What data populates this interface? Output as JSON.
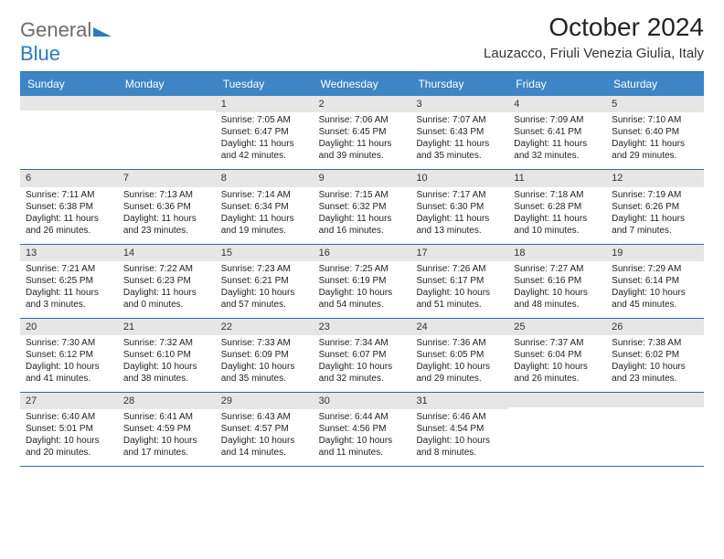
{
  "logo": {
    "word1": "General",
    "word2": "Blue"
  },
  "title": "October 2024",
  "subtitle": "Lauzacco, Friuli Venezia Giulia, Italy",
  "colors": {
    "header_bg": "#3d85c6",
    "header_text": "#ffffff",
    "daynum_bg": "#e6e6e6",
    "border": "#2c6aa0",
    "logo_gray": "#6b6b6b",
    "logo_blue": "#2c7bbf"
  },
  "dayNames": [
    "Sunday",
    "Monday",
    "Tuesday",
    "Wednesday",
    "Thursday",
    "Friday",
    "Saturday"
  ],
  "weeks": [
    [
      {
        "n": "",
        "sr": "",
        "ss": "",
        "dl": ""
      },
      {
        "n": "",
        "sr": "",
        "ss": "",
        "dl": ""
      },
      {
        "n": "1",
        "sr": "Sunrise: 7:05 AM",
        "ss": "Sunset: 6:47 PM",
        "dl": "Daylight: 11 hours and 42 minutes."
      },
      {
        "n": "2",
        "sr": "Sunrise: 7:06 AM",
        "ss": "Sunset: 6:45 PM",
        "dl": "Daylight: 11 hours and 39 minutes."
      },
      {
        "n": "3",
        "sr": "Sunrise: 7:07 AM",
        "ss": "Sunset: 6:43 PM",
        "dl": "Daylight: 11 hours and 35 minutes."
      },
      {
        "n": "4",
        "sr": "Sunrise: 7:09 AM",
        "ss": "Sunset: 6:41 PM",
        "dl": "Daylight: 11 hours and 32 minutes."
      },
      {
        "n": "5",
        "sr": "Sunrise: 7:10 AM",
        "ss": "Sunset: 6:40 PM",
        "dl": "Daylight: 11 hours and 29 minutes."
      }
    ],
    [
      {
        "n": "6",
        "sr": "Sunrise: 7:11 AM",
        "ss": "Sunset: 6:38 PM",
        "dl": "Daylight: 11 hours and 26 minutes."
      },
      {
        "n": "7",
        "sr": "Sunrise: 7:13 AM",
        "ss": "Sunset: 6:36 PM",
        "dl": "Daylight: 11 hours and 23 minutes."
      },
      {
        "n": "8",
        "sr": "Sunrise: 7:14 AM",
        "ss": "Sunset: 6:34 PM",
        "dl": "Daylight: 11 hours and 19 minutes."
      },
      {
        "n": "9",
        "sr": "Sunrise: 7:15 AM",
        "ss": "Sunset: 6:32 PM",
        "dl": "Daylight: 11 hours and 16 minutes."
      },
      {
        "n": "10",
        "sr": "Sunrise: 7:17 AM",
        "ss": "Sunset: 6:30 PM",
        "dl": "Daylight: 11 hours and 13 minutes."
      },
      {
        "n": "11",
        "sr": "Sunrise: 7:18 AM",
        "ss": "Sunset: 6:28 PM",
        "dl": "Daylight: 11 hours and 10 minutes."
      },
      {
        "n": "12",
        "sr": "Sunrise: 7:19 AM",
        "ss": "Sunset: 6:26 PM",
        "dl": "Daylight: 11 hours and 7 minutes."
      }
    ],
    [
      {
        "n": "13",
        "sr": "Sunrise: 7:21 AM",
        "ss": "Sunset: 6:25 PM",
        "dl": "Daylight: 11 hours and 3 minutes."
      },
      {
        "n": "14",
        "sr": "Sunrise: 7:22 AM",
        "ss": "Sunset: 6:23 PM",
        "dl": "Daylight: 11 hours and 0 minutes."
      },
      {
        "n": "15",
        "sr": "Sunrise: 7:23 AM",
        "ss": "Sunset: 6:21 PM",
        "dl": "Daylight: 10 hours and 57 minutes."
      },
      {
        "n": "16",
        "sr": "Sunrise: 7:25 AM",
        "ss": "Sunset: 6:19 PM",
        "dl": "Daylight: 10 hours and 54 minutes."
      },
      {
        "n": "17",
        "sr": "Sunrise: 7:26 AM",
        "ss": "Sunset: 6:17 PM",
        "dl": "Daylight: 10 hours and 51 minutes."
      },
      {
        "n": "18",
        "sr": "Sunrise: 7:27 AM",
        "ss": "Sunset: 6:16 PM",
        "dl": "Daylight: 10 hours and 48 minutes."
      },
      {
        "n": "19",
        "sr": "Sunrise: 7:29 AM",
        "ss": "Sunset: 6:14 PM",
        "dl": "Daylight: 10 hours and 45 minutes."
      }
    ],
    [
      {
        "n": "20",
        "sr": "Sunrise: 7:30 AM",
        "ss": "Sunset: 6:12 PM",
        "dl": "Daylight: 10 hours and 41 minutes."
      },
      {
        "n": "21",
        "sr": "Sunrise: 7:32 AM",
        "ss": "Sunset: 6:10 PM",
        "dl": "Daylight: 10 hours and 38 minutes."
      },
      {
        "n": "22",
        "sr": "Sunrise: 7:33 AM",
        "ss": "Sunset: 6:09 PM",
        "dl": "Daylight: 10 hours and 35 minutes."
      },
      {
        "n": "23",
        "sr": "Sunrise: 7:34 AM",
        "ss": "Sunset: 6:07 PM",
        "dl": "Daylight: 10 hours and 32 minutes."
      },
      {
        "n": "24",
        "sr": "Sunrise: 7:36 AM",
        "ss": "Sunset: 6:05 PM",
        "dl": "Daylight: 10 hours and 29 minutes."
      },
      {
        "n": "25",
        "sr": "Sunrise: 7:37 AM",
        "ss": "Sunset: 6:04 PM",
        "dl": "Daylight: 10 hours and 26 minutes."
      },
      {
        "n": "26",
        "sr": "Sunrise: 7:38 AM",
        "ss": "Sunset: 6:02 PM",
        "dl": "Daylight: 10 hours and 23 minutes."
      }
    ],
    [
      {
        "n": "27",
        "sr": "Sunrise: 6:40 AM",
        "ss": "Sunset: 5:01 PM",
        "dl": "Daylight: 10 hours and 20 minutes."
      },
      {
        "n": "28",
        "sr": "Sunrise: 6:41 AM",
        "ss": "Sunset: 4:59 PM",
        "dl": "Daylight: 10 hours and 17 minutes."
      },
      {
        "n": "29",
        "sr": "Sunrise: 6:43 AM",
        "ss": "Sunset: 4:57 PM",
        "dl": "Daylight: 10 hours and 14 minutes."
      },
      {
        "n": "30",
        "sr": "Sunrise: 6:44 AM",
        "ss": "Sunset: 4:56 PM",
        "dl": "Daylight: 10 hours and 11 minutes."
      },
      {
        "n": "31",
        "sr": "Sunrise: 6:46 AM",
        "ss": "Sunset: 4:54 PM",
        "dl": "Daylight: 10 hours and 8 minutes."
      },
      {
        "n": "",
        "sr": "",
        "ss": "",
        "dl": ""
      },
      {
        "n": "",
        "sr": "",
        "ss": "",
        "dl": ""
      }
    ]
  ]
}
